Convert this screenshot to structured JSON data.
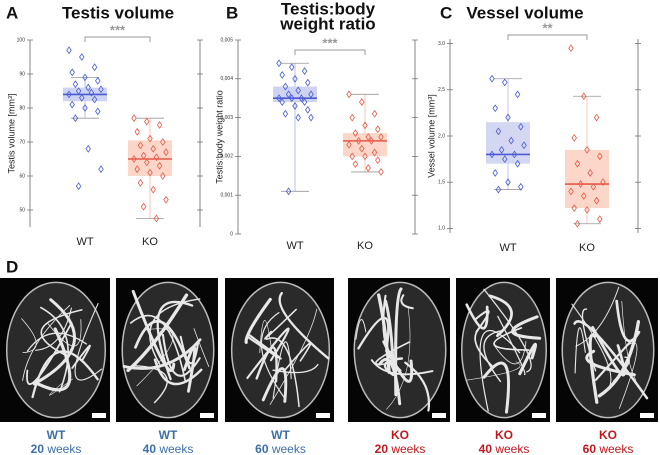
{
  "panel_labels": [
    "A",
    "B",
    "C",
    "D"
  ],
  "chart_data": [
    {
      "type": "box",
      "title": [
        "Testis volume"
      ],
      "ylabel": "Testis volume [mm³]",
      "categories": [
        "WT",
        "KO"
      ],
      "significance": "***",
      "ylim": [
        45,
        100
      ],
      "yticks": [
        50,
        60,
        70,
        80,
        90,
        100
      ],
      "boxes": [
        {
          "color": "#4a5bd4",
          "fill": "#c5cbee",
          "min": 77,
          "q1": 82,
          "median": 84,
          "q3": 86,
          "max": 89,
          "points": [
            97,
            95,
            92,
            90.5,
            89,
            88,
            87,
            86,
            85.5,
            85,
            84.5,
            84,
            83,
            82.5,
            81,
            80,
            79,
            77,
            68,
            62,
            57
          ]
        },
        {
          "color": "#e8594a",
          "fill": "#fbd0c0",
          "min": 47.5,
          "q1": 60,
          "median": 65,
          "q3": 70.5,
          "max": 77,
          "points": [
            77,
            76,
            75,
            73,
            71,
            70,
            69,
            68,
            67,
            66,
            65.5,
            65,
            64,
            63,
            62,
            61,
            60,
            58,
            56,
            53,
            51,
            47.5
          ]
        }
      ]
    },
    {
      "type": "box",
      "title": [
        "Testis:body",
        "weight ratio"
      ],
      "ylabel": "Testis:body weight ratio",
      "categories": [
        "WT",
        "KO"
      ],
      "significance": "***",
      "ylim": [
        0,
        0.005
      ],
      "yticks": [
        0,
        {
          "value": 0.001,
          "label": "0,001"
        },
        {
          "value": 0.002,
          "label": "0,002"
        },
        {
          "value": 0.003,
          "label": "0,003"
        },
        {
          "value": 0.004,
          "label": "0,004"
        },
        {
          "value": 0.005,
          "label": "0,005"
        }
      ],
      "boxes": [
        {
          "color": "#4a5bd4",
          "fill": "#c5cbee",
          "min": 0.0011,
          "q1": 0.0034,
          "median": 0.0035,
          "q3": 0.0038,
          "max": 0.0044,
          "points": [
            0.0044,
            0.0043,
            0.0042,
            0.0041,
            0.004,
            0.0039,
            0.0038,
            0.0037,
            0.0036,
            0.0036,
            0.0035,
            0.0035,
            0.0035,
            0.0034,
            0.0034,
            0.0033,
            0.0032,
            0.0031,
            0.003,
            0.003,
            0.0011
          ]
        },
        {
          "color": "#e8594a",
          "fill": "#fbd0c0",
          "min": 0.0016,
          "q1": 0.002,
          "median": 0.0024,
          "q3": 0.0026,
          "max": 0.0036,
          "points": [
            0.0036,
            0.0034,
            0.0031,
            0.003,
            0.0028,
            0.0027,
            0.0026,
            0.0025,
            0.0025,
            0.0024,
            0.0024,
            0.0023,
            0.0022,
            0.0021,
            0.002,
            0.002,
            0.0019,
            0.0018,
            0.0017,
            0.0016
          ]
        }
      ]
    },
    {
      "type": "box",
      "title": [
        "Vessel volume"
      ],
      "ylabel": "Vessel volume [mm³]",
      "categories": [
        "WT",
        "KO"
      ],
      "significance": "**",
      "ylim": [
        0.95,
        3.05
      ],
      "yticks": [
        {
          "value": 1,
          "label": "1,0"
        },
        {
          "value": 1.5,
          "label": "1,5"
        },
        {
          "value": 2,
          "label": "2,0"
        },
        {
          "value": 2.5,
          "label": "2,5"
        },
        {
          "value": 3,
          "label": "3,0"
        }
      ],
      "boxes": [
        {
          "color": "#4a5bd4",
          "fill": "#ccd0ef",
          "min": 1.42,
          "q1": 1.7,
          "median": 1.8,
          "q3": 2.15,
          "max": 2.62,
          "points": [
            2.62,
            2.58,
            2.45,
            2.3,
            2.2,
            2.1,
            2.05,
            1.95,
            1.9,
            1.85,
            1.8,
            1.8,
            1.75,
            1.7,
            1.6,
            1.5,
            1.45,
            1.42
          ]
        },
        {
          "color": "#e8594a",
          "fill": "#fbd0c0",
          "min": 1.05,
          "q1": 1.22,
          "median": 1.48,
          "q3": 1.85,
          "max": 2.43,
          "points": [
            2.95,
            2.43,
            2.2,
            1.98,
            1.85,
            1.78,
            1.7,
            1.6,
            1.5,
            1.48,
            1.45,
            1.4,
            1.35,
            1.3,
            1.22,
            1.2,
            1.1,
            1.05
          ]
        }
      ]
    }
  ],
  "images": [
    {
      "group": "WT",
      "age": "20",
      "unit": "weeks",
      "color": "#3c6fa8"
    },
    {
      "group": "WT",
      "age": "40",
      "unit": "weeks",
      "color": "#3c6fa8"
    },
    {
      "group": "WT",
      "age": "60",
      "unit": "weeks",
      "color": "#3c6fa8"
    },
    {
      "group": "KO",
      "age": "20",
      "unit": "weeks",
      "color": "#c0181f"
    },
    {
      "group": "KO",
      "age": "40",
      "unit": "weeks",
      "color": "#c0181f"
    },
    {
      "group": "KO",
      "age": "60",
      "unit": "weeks",
      "color": "#c0181f"
    }
  ]
}
